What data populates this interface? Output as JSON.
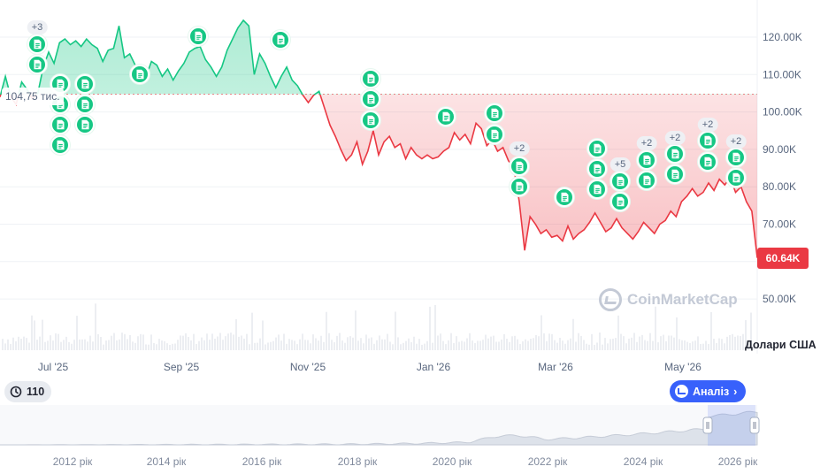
{
  "chart_data": {
    "type": "line",
    "title": "",
    "ylabel": "",
    "currency_label": "Долари США",
    "ylim": [
      40000,
      125000
    ],
    "y_ticks": [
      50000,
      60000,
      70000,
      80000,
      90000,
      100000,
      110000,
      120000
    ],
    "y_tick_labels": [
      "50.00K",
      "60.00K",
      "70.00K",
      "80.00K",
      "90.00K",
      "100.00K",
      "110.00K",
      "120.00K"
    ],
    "x_labels": [
      "Jul '25",
      "Sep '25",
      "Nov '25",
      "Jan '26",
      "Mar '26",
      "May '26"
    ],
    "baseline_value": 104750,
    "baseline_label": "104,75 тис.",
    "current_value": 60640,
    "current_label": "60.64K",
    "colors": {
      "up": "#16c784",
      "down": "#ea3943",
      "grid": "#eff2f5",
      "accent": "#3861fb"
    },
    "series": [
      {
        "values": [
          104000,
          109500,
          104000,
          102000,
          108000,
          106000,
          103500,
          105000,
          112000,
          116000,
          113000,
          118500,
          119500,
          118000,
          119000,
          117500,
          119500,
          118000,
          117000,
          113500,
          116500,
          117000,
          123000,
          114500,
          115500,
          112500,
          110500,
          109500,
          113500,
          112500,
          109500,
          111500,
          108500,
          111000,
          113000,
          116000,
          117000,
          117500,
          114000,
          112000,
          109500,
          112000,
          116500,
          119500,
          122500,
          124500,
          123000,
          110000,
          115500,
          113000,
          109500,
          106500,
          109500,
          112000,
          108500,
          107000,
          104500,
          102500,
          104500,
          105500,
          101000,
          96500,
          93500,
          90000,
          87000,
          88500,
          92000,
          86000,
          89500,
          95000,
          88500,
          92000,
          93500,
          90500,
          91500,
          87500,
          90500,
          88500,
          87500,
          88500,
          87500,
          88000,
          89500,
          90500,
          94500,
          92500,
          94000,
          91500,
          97000,
          95500,
          91000,
          92500,
          89500,
          90500,
          87000,
          85000,
          76000,
          63000,
          72000,
          70000,
          67500,
          68500,
          66500,
          67000,
          65500,
          69500,
          66000,
          67500,
          68500,
          70500,
          73000,
          70500,
          68000,
          69000,
          71500,
          69000,
          67500,
          66000,
          68000,
          70500,
          69000,
          67500,
          70000,
          71000,
          73500,
          72000,
          76000,
          77500,
          79500,
          77500,
          78500,
          81000,
          79000,
          82000,
          80500,
          82500,
          78500,
          80000,
          76000,
          73500,
          61000
        ]
      }
    ],
    "news_badges": [
      "+3",
      "+2",
      "+5",
      "+2",
      "+2",
      "+2",
      "+2"
    ],
    "navigator": {
      "x_labels": [
        "2012 рік",
        "2014 рік",
        "2016 рік",
        "2018 рік",
        "2020 рік",
        "2022 рік",
        "2024 рік",
        "2026 рік"
      ]
    },
    "watermark": "CoinMarketCap"
  },
  "controls": {
    "history_count": "110",
    "analysis_label": "Аналіз"
  }
}
